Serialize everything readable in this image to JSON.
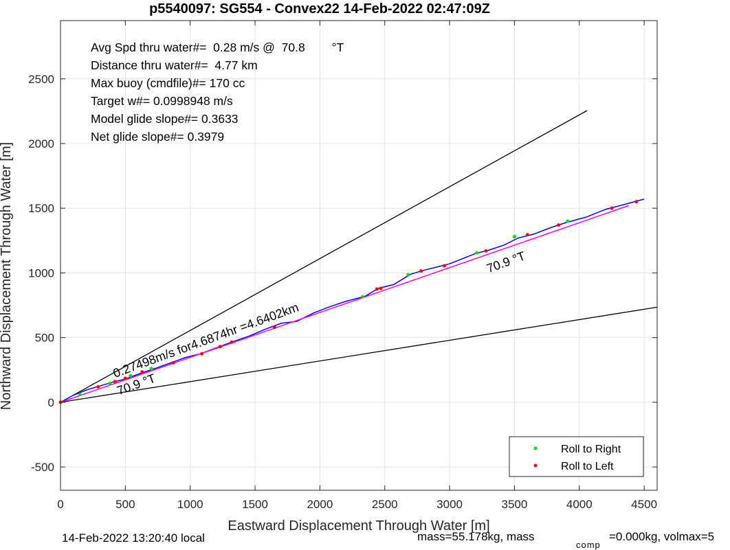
{
  "chart_data": {
    "type": "line",
    "title": "p5540097: SG554 - Convex22 14-Feb-2022 02:47:09Z",
    "xlabel": "Eastward Displacement Through Water [m]",
    "ylabel": "Northward Displacement Through Water [m]",
    "xlim": [
      0,
      4600
    ],
    "ylim": [
      -680,
      2950
    ],
    "x_ticks": [
      0,
      500,
      1000,
      1500,
      2000,
      2500,
      3000,
      3500,
      4000,
      4500
    ],
    "x_tick_labels": [
      "0",
      "500",
      "1000",
      "1500",
      "2000",
      "2500",
      "3000",
      "3500",
      "4000",
      "4500"
    ],
    "y_ticks": [
      -500,
      0,
      500,
      1000,
      1500,
      2000,
      2500
    ],
    "y_tick_labels": [
      "-500",
      "0",
      "500",
      "1000",
      "1500",
      "2000",
      "2500"
    ],
    "grid": true,
    "legend_position": "bottom-right",
    "info_lines": [
      "Avg Spd thru water#=  0.28 m/s @  70.8        °T",
      "Distance thru water#=  4.77 km",
      "Max buoy (cmdfile)#= 170 cc",
      "Target w#= 0.0998948 m/s",
      "Model glide slope#= 0.3633",
      "Net glide slope#= 0.3979"
    ],
    "annotations": [
      {
        "text": "0.27498m/s for4.6874hr =4.6402km",
        "x": 420,
        "y": 190,
        "angle_deg": 20
      },
      {
        "text": "70.9  °T",
        "x": 450,
        "y": 55,
        "angle_deg": 20
      },
      {
        "text": "70.9  °T",
        "x": 3300,
        "y": 1000,
        "angle_deg": 20
      }
    ],
    "series": [
      {
        "name": "",
        "kind": "reference",
        "color": "#000000",
        "x": [
          0,
          4060
        ],
        "y": [
          0,
          2255
        ]
      },
      {
        "name": "",
        "kind": "reference",
        "color": "#000000",
        "x": [
          0,
          4600
        ],
        "y": [
          0,
          735
        ]
      },
      {
        "name": "",
        "kind": "reference-dashed",
        "color": "#000000",
        "x": [
          0,
          4380
        ],
        "y": [
          0,
          1520
        ]
      },
      {
        "name": "",
        "kind": "track",
        "color": "#0000dd",
        "x": [
          0,
          100,
          200,
          300,
          400,
          500,
          620,
          740,
          850,
          960,
          1080,
          1200,
          1320,
          1450,
          1580,
          1700,
          1820,
          1950,
          2080,
          2200,
          2350,
          2450,
          2570,
          2700,
          2800,
          2900,
          3000,
          3100,
          3200,
          3300,
          3420,
          3530,
          3650,
          3780,
          3900,
          4050,
          4200,
          4350,
          4500
        ],
        "y": [
          0,
          55,
          95,
          125,
          155,
          180,
          225,
          265,
          305,
          345,
          375,
          420,
          465,
          510,
          565,
          610,
          625,
          690,
          740,
          780,
          820,
          880,
          910,
          990,
          1020,
          1045,
          1070,
          1110,
          1150,
          1175,
          1215,
          1270,
          1300,
          1350,
          1390,
          1430,
          1490,
          1530,
          1570
        ]
      },
      {
        "name": "",
        "kind": "fit",
        "color": "#ff00ff",
        "x": [
          0,
          4380
        ],
        "y": [
          0,
          1520
        ]
      },
      {
        "name": "Roll to Right",
        "kind": "points",
        "color": "#00dd00",
        "x": [
          150,
          380,
          540,
          700,
          2330,
          2680,
          3210,
          3500,
          3910
        ],
        "y": [
          60,
          145,
          205,
          260,
          815,
          985,
          1155,
          1280,
          1400
        ]
      },
      {
        "name": "Roll to Left",
        "kind": "points",
        "color": "#ff0000",
        "x": [
          0,
          290,
          420,
          500,
          630,
          870,
          1090,
          1230,
          1320,
          1650,
          2440,
          2470,
          2780,
          2960,
          3280,
          3600,
          3840,
          4250,
          4440
        ],
        "y": [
          0,
          120,
          160,
          185,
          235,
          305,
          375,
          430,
          465,
          580,
          875,
          880,
          1015,
          1055,
          1170,
          1295,
          1370,
          1500,
          1550
        ]
      }
    ],
    "footer": {
      "left": "14-Feb-2022 13:20:40 local",
      "right_main": "mass=55.178kg, mass",
      "right_sub": "comp",
      "right_tail": "=0.000kg, volmax=5"
    }
  }
}
